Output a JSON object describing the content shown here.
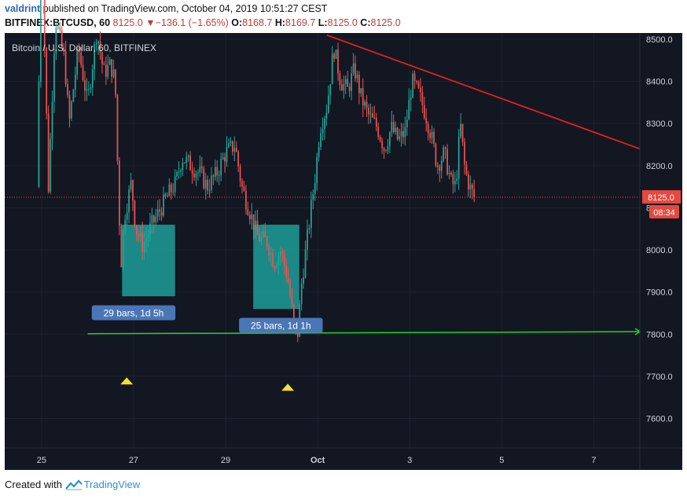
{
  "header": {
    "author": "valdrint",
    "published_text": " published on TradingView.com, October 04, 2019 10:51:27 CEST",
    "symbol": "BITFINEX:BTCUSD, 60",
    "last": "8125.0",
    "change": "−136.1 (−1.65%)",
    "o_label": "O:",
    "o_value": "8168.7",
    "h_label": "H:",
    "h_value": "8169.7",
    "l_label": "L:",
    "l_value": "8125.0",
    "c_label": "C:",
    "c_value": "8125.0"
  },
  "footer": {
    "created_with": "Created with ",
    "brand": "TradingView"
  },
  "colors": {
    "background": "#131722",
    "grid": "#1e2230",
    "up": "#26a69a",
    "down": "#ef5350",
    "trendline": "#e0231f",
    "support": "#22d322",
    "range_fill": "#1fb6ad",
    "badge": "#4a76b6",
    "price_tag": "#e5483f",
    "arrow": "#f0e232"
  },
  "chart_data": {
    "type": "candlestick",
    "title": "Bitcoin / U.S. Dollar, 60, BITFINEX",
    "x_ticks": [
      "25",
      "27",
      "29",
      "Oct",
      "3",
      "5",
      "7"
    ],
    "x_tick_days": [
      25,
      27,
      29,
      31,
      33,
      35,
      37
    ],
    "x_range_days": [
      24.2,
      38.0
    ],
    "y_ticks": [
      7600,
      7700,
      7800,
      7900,
      8000,
      8100,
      8200,
      8300,
      8400,
      8500
    ],
    "y_tick_labels": [
      "7600.0",
      "7700.0",
      "7800.0",
      "7900.0",
      "8000.0",
      "8100.0",
      "8200.0",
      "8300.0",
      "8400.0",
      "8500.0"
    ],
    "y_range": [
      7530,
      8515
    ],
    "last_price": 8125.0,
    "last_price_label": "8125.0",
    "countdown": "08:34",
    "price_path": [
      [
        24.9,
        8150
      ],
      [
        25.0,
        8750
      ],
      [
        25.15,
        8150
      ],
      [
        25.3,
        8550
      ],
      [
        25.5,
        8450
      ],
      [
        25.6,
        8300
      ],
      [
        25.8,
        8480
      ],
      [
        26.0,
        8350
      ],
      [
        26.2,
        8520
      ],
      [
        26.35,
        8420
      ],
      [
        26.5,
        8440
      ],
      [
        26.6,
        8400
      ],
      [
        26.68,
        8100
      ],
      [
        26.73,
        7970
      ],
      [
        26.8,
        8080
      ],
      [
        26.95,
        8160
      ],
      [
        27.05,
        8050
      ],
      [
        27.2,
        8010
      ],
      [
        27.4,
        8060
      ],
      [
        27.6,
        8100
      ],
      [
        27.8,
        8140
      ],
      [
        27.92,
        8160
      ],
      [
        28.05,
        8220
      ],
      [
        28.25,
        8200
      ],
      [
        28.45,
        8180
      ],
      [
        28.6,
        8150
      ],
      [
        28.8,
        8180
      ],
      [
        29.0,
        8230
      ],
      [
        29.2,
        8250
      ],
      [
        29.35,
        8150
      ],
      [
        29.5,
        8100
      ],
      [
        29.7,
        8030
      ],
      [
        29.9,
        8020
      ],
      [
        30.05,
        7970
      ],
      [
        30.2,
        8000
      ],
      [
        30.35,
        7930
      ],
      [
        30.45,
        7850
      ],
      [
        30.55,
        7780
      ],
      [
        30.65,
        7920
      ],
      [
        30.8,
        8050
      ],
      [
        30.95,
        8180
      ],
      [
        31.05,
        8290
      ],
      [
        31.2,
        8340
      ],
      [
        31.35,
        8480
      ],
      [
        31.5,
        8400
      ],
      [
        31.65,
        8380
      ],
      [
        31.8,
        8430
      ],
      [
        31.95,
        8360
      ],
      [
        32.1,
        8320
      ],
      [
        32.3,
        8290
      ],
      [
        32.45,
        8240
      ],
      [
        32.6,
        8290
      ],
      [
        32.75,
        8260
      ],
      [
        32.9,
        8280
      ],
      [
        33.05,
        8400
      ],
      [
        33.2,
        8370
      ],
      [
        33.35,
        8320
      ],
      [
        33.45,
        8280
      ],
      [
        33.6,
        8200
      ],
      [
        33.75,
        8230
      ],
      [
        33.9,
        8160
      ],
      [
        34.0,
        8150
      ],
      [
        34.1,
        8300
      ],
      [
        34.2,
        8190
      ],
      [
        34.3,
        8150
      ],
      [
        34.4,
        8125
      ]
    ],
    "drawings": {
      "trendline": {
        "from": [
          31.2,
          8510
        ],
        "to": [
          38.0,
          8240
        ]
      },
      "support": {
        "from": [
          26.0,
          7801
        ],
        "to": [
          38.0,
          7806
        ],
        "price": 7803
      },
      "ranges": [
        {
          "x0": 26.75,
          "x1": 27.9,
          "y0": 7890,
          "y1": 8060,
          "label": "29 bars, 1d 5h",
          "label_x": 27.0,
          "label_y": 7850
        },
        {
          "x0": 29.6,
          "x1": 30.6,
          "y0": 7860,
          "y1": 8060,
          "label": "25 bars, 1d 1h",
          "label_x": 30.2,
          "label_y": 7820
        }
      ],
      "arrows": [
        {
          "x": 26.85,
          "y": 7690
        },
        {
          "x": 30.35,
          "y": 7675
        }
      ]
    }
  }
}
